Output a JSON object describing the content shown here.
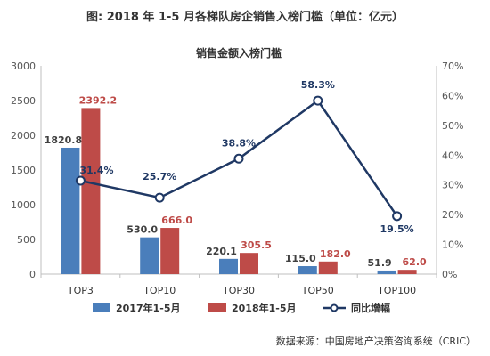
{
  "figure_title": "图: 2018 年 1-5 月各梯队房企销售入榜门槛（单位：亿元）",
  "source_note": "数据来源：中国房地产决策咨询系统（CRIC）",
  "chart_data": {
    "type": "bar",
    "title": "销售金额入榜门槛",
    "categories": [
      "TOP3",
      "TOP10",
      "TOP30",
      "TOP50",
      "TOP100"
    ],
    "series": [
      {
        "name": "2017年1-5月",
        "kind": "bar",
        "axis": "left",
        "color": "#4a7ebb",
        "values": [
          1820.8,
          530.0,
          220.1,
          115.0,
          51.9
        ],
        "labels": [
          "1820.8",
          "530.0",
          "220.1",
          "115.0",
          "51.9"
        ]
      },
      {
        "name": "2018年1-5月",
        "kind": "bar",
        "axis": "left",
        "color": "#be4b48",
        "values": [
          2392.2,
          666.0,
          305.5,
          182.0,
          62.0
        ],
        "labels": [
          "2392.2",
          "666.0",
          "305.5",
          "182.0",
          "62.0"
        ]
      },
      {
        "name": "同比增幅",
        "kind": "line",
        "axis": "right",
        "color": "#1f3864",
        "values": [
          31.4,
          25.7,
          38.8,
          58.3,
          19.5
        ],
        "labels": [
          "31.4%",
          "25.7%",
          "38.8%",
          "58.3%",
          "19.5%"
        ]
      }
    ],
    "y_left": {
      "min": 0,
      "max": 3000,
      "ticks": [
        "0",
        "500",
        "1000",
        "1500",
        "2000",
        "2500",
        "3000"
      ]
    },
    "y_right": {
      "min": 0,
      "max": 70,
      "ticks": [
        "0%",
        "10%",
        "20%",
        "30%",
        "40%",
        "50%",
        "60%",
        "70%"
      ]
    },
    "legend_position": "bottom",
    "grid": false
  }
}
